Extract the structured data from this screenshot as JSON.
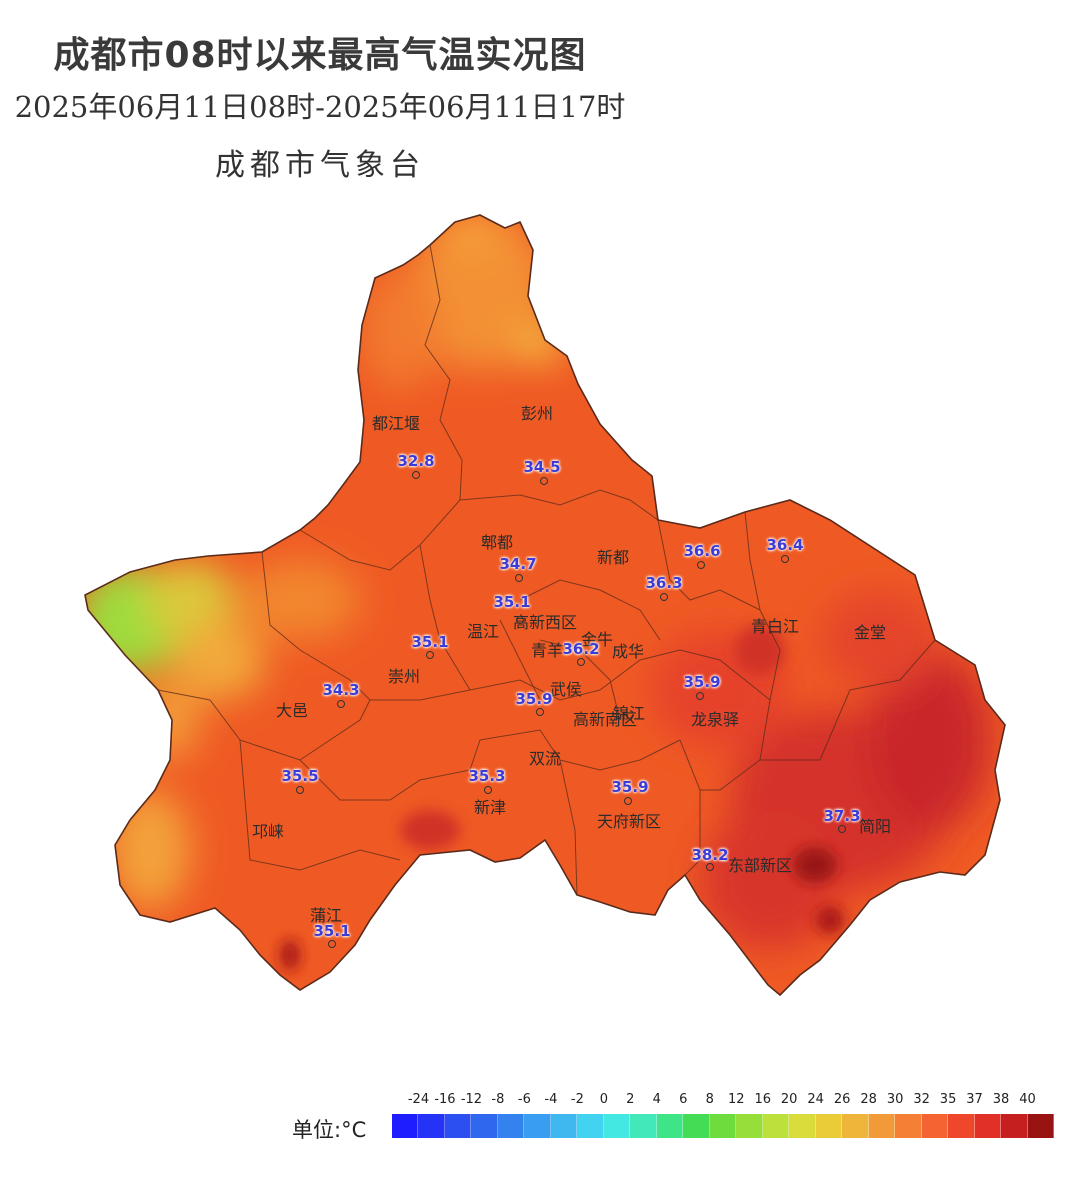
{
  "header": {
    "title": "成都市08时以来最高气温实况图",
    "timespan": "2025年06月11日08时-2025年06月11日17时",
    "source": "成都市气象台"
  },
  "map": {
    "place_labels": [
      "都江堰",
      "彭州",
      "郫都",
      "新都",
      "温江",
      "高新西区",
      "金牛",
      "青羊",
      "成华",
      "青白江",
      "金堂",
      "崇州",
      "大邑",
      "武侯",
      "锦江",
      "高新南区",
      "龙泉驿",
      "双流",
      "新津",
      "天府新区",
      "邛崃",
      "东部新区",
      "简阳",
      "蒲江"
    ],
    "stations": [
      {
        "name": "都江堰",
        "temp": "32.8"
      },
      {
        "name": "彭州",
        "temp": "34.5"
      },
      {
        "name": "郫都",
        "temp": "34.7"
      },
      {
        "name": "新都",
        "temp": "36.6"
      },
      {
        "name": "青白江",
        "temp": "36.4"
      },
      {
        "name": "成华",
        "temp": "36.3"
      },
      {
        "name": "温江",
        "temp": "35.1"
      },
      {
        "name": "崇州",
        "temp": "35.1"
      },
      {
        "name": "青羊",
        "temp": "36.2"
      },
      {
        "name": "大邑",
        "temp": "34.3"
      },
      {
        "name": "龙泉驿",
        "temp": "35.9"
      },
      {
        "name": "武侯",
        "temp": "35.9"
      },
      {
        "name": "邛崃",
        "temp": "35.5"
      },
      {
        "name": "新津",
        "temp": "35.3"
      },
      {
        "name": "天府新区",
        "temp": "35.9"
      },
      {
        "name": "简阳",
        "temp": "37.3"
      },
      {
        "name": "东部新区",
        "temp": "38.2"
      },
      {
        "name": "蒲江",
        "temp": "35.1"
      }
    ]
  },
  "legend": {
    "unit_label": "单位:°C",
    "ticks": [
      "-24",
      "-16",
      "-12",
      "-8",
      "-6",
      "-4",
      "-2",
      "0",
      "2",
      "4",
      "6",
      "8",
      "12",
      "16",
      "20",
      "24",
      "26",
      "28",
      "30",
      "32",
      "35",
      "37",
      "38",
      "40"
    ],
    "colors": [
      "#1d1dff",
      "#2433f5",
      "#2b4ff0",
      "#2f67ee",
      "#3382ee",
      "#3a9ef0",
      "#3fb8f0",
      "#41d3ef",
      "#44e8e2",
      "#42e8b8",
      "#3fe487",
      "#44dc55",
      "#6fdc3d",
      "#98de3a",
      "#bde03a",
      "#d9dc3a",
      "#eacc38",
      "#efb43a",
      "#f39a38",
      "#f47f35",
      "#f36430",
      "#ee472b",
      "#e03027",
      "#c51f1f",
      "#9a1313"
    ]
  }
}
